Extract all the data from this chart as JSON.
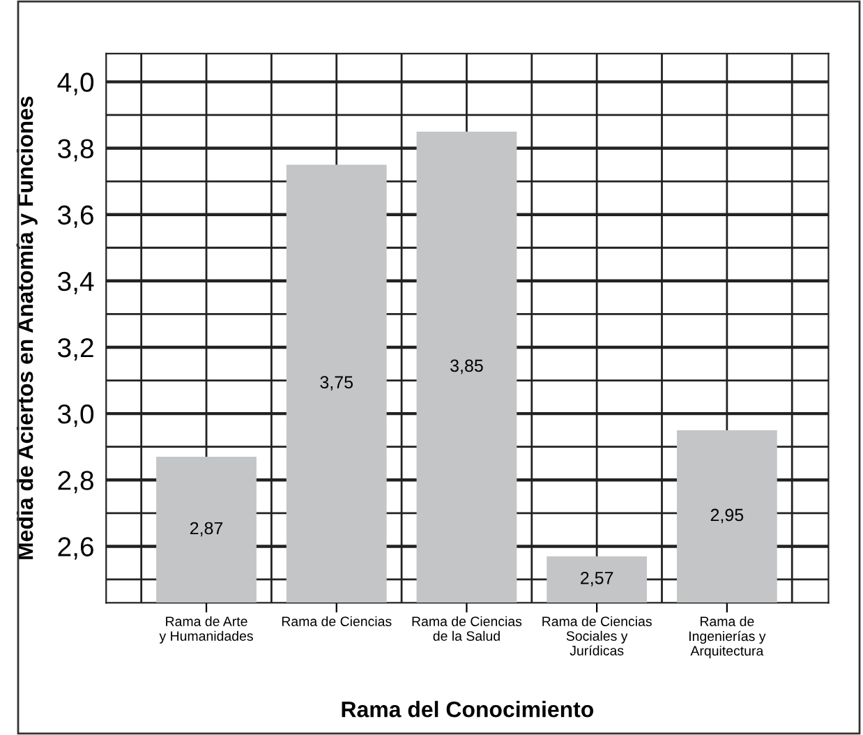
{
  "chart_data": {
    "type": "bar",
    "xlabel": "Rama del Conocimiento",
    "ylabel": "Media de Aciertos en Anatomía y Funciones",
    "categories": [
      "Rama de Arte\ny Humanidades",
      "Rama de Ciencias",
      "Rama de Ciencias\nde la Salud",
      "Rama de Ciencias\nSociales y\nJurídicas",
      "Rama de\nIngenierías y\nArquitectura"
    ],
    "values": [
      2.87,
      3.75,
      3.85,
      2.57,
      2.95
    ],
    "value_labels": [
      "2,87",
      "3,75",
      "3,85",
      "2,57",
      "2,95"
    ],
    "color": "#c4c5c7",
    "ylim": [
      2.43,
      4.085
    ],
    "yticks": [
      {
        "value": 2.6,
        "label": "2,6"
      },
      {
        "value": 2.8,
        "label": "2,8"
      },
      {
        "value": 3.0,
        "label": "3,0"
      },
      {
        "value": 3.2,
        "label": "3,2"
      },
      {
        "value": 3.4,
        "label": "3,4"
      },
      {
        "value": 3.6,
        "label": "3,6"
      },
      {
        "value": 3.8,
        "label": "3,8"
      },
      {
        "value": 4.0,
        "label": "4,0"
      }
    ],
    "grid": true,
    "legend": false
  }
}
